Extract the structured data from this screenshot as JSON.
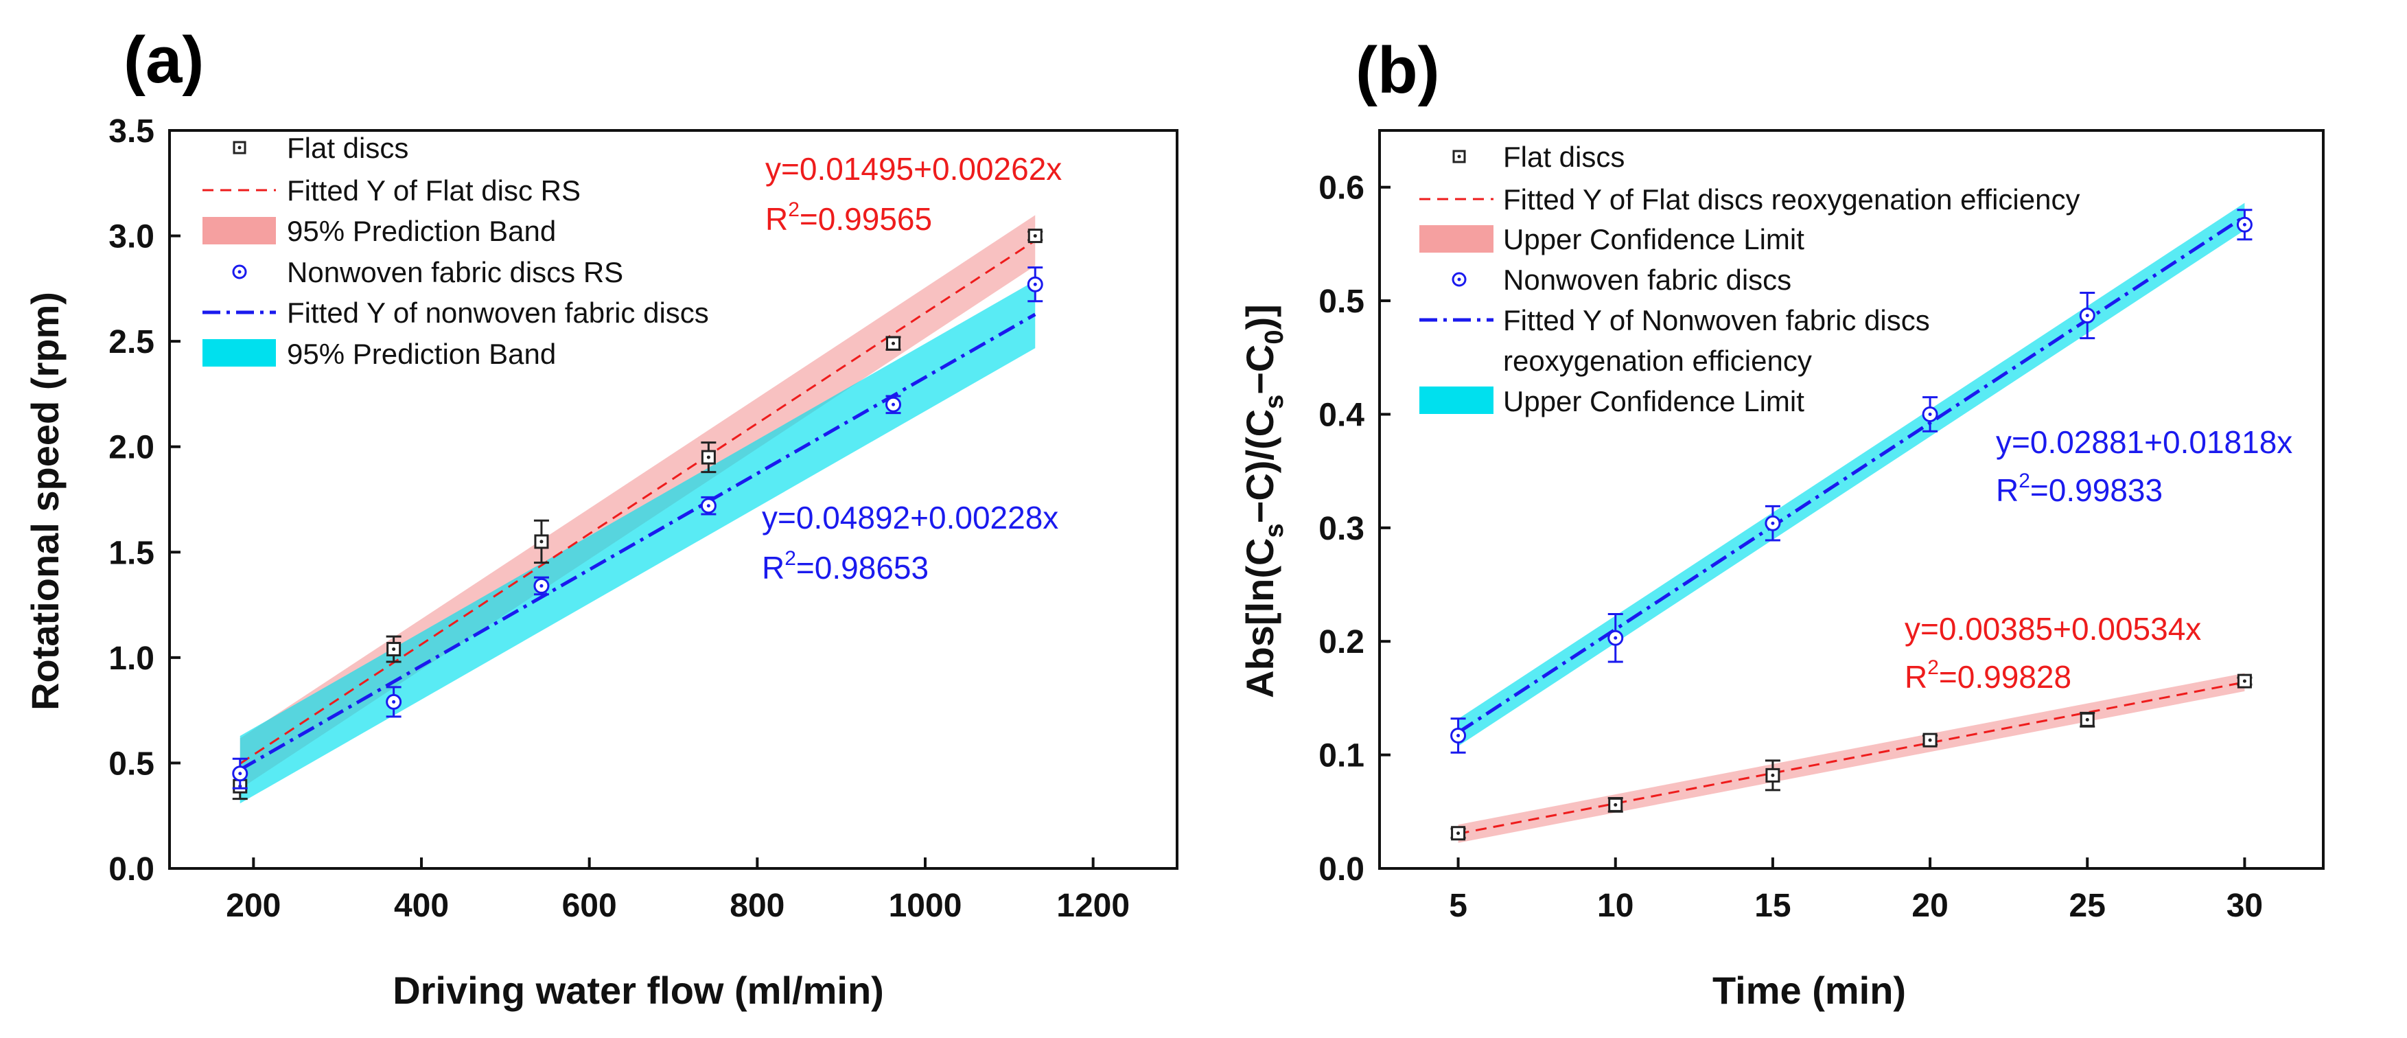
{
  "chart_data": [
    {
      "type": "line",
      "panel_label": "(a)",
      "xlabel": "Driving water flow (ml/min)",
      "ylabel": "Rotational speed (rpm)",
      "xlim": [
        100,
        1300
      ],
      "ylim": [
        0,
        3.5
      ],
      "xticks": [
        200,
        400,
        600,
        800,
        1000,
        1200
      ],
      "yticks": [
        "0.0",
        "0.5",
        "1.0",
        "1.5",
        "2.0",
        "2.5",
        "3.0",
        "3.5"
      ],
      "series": [
        {
          "name": "Flat discs",
          "kind": "points",
          "marker": "square",
          "color": "#222222",
          "x": [
            184,
            367,
            543,
            742,
            962,
            1131
          ],
          "y": [
            0.39,
            1.04,
            1.55,
            1.95,
            2.49,
            3.0
          ],
          "err": [
            0.06,
            0.06,
            0.1,
            0.07,
            0.03,
            0.02
          ]
        },
        {
          "name": "Nonwoven fabric discs RS",
          "kind": "points",
          "marker": "circle",
          "color": "#1a1aee",
          "x": [
            184,
            367,
            543,
            742,
            962,
            1131
          ],
          "y": [
            0.45,
            0.79,
            1.34,
            1.72,
            2.2,
            2.77
          ],
          "err": [
            0.07,
            0.07,
            0.04,
            0.04,
            0.04,
            0.08
          ]
        }
      ],
      "fits": [
        {
          "name": "Fitted Y of Flat disc RS",
          "intercept": 0.01495,
          "slope": 0.00262,
          "x_range": [
            184,
            1131
          ],
          "band_half": 0.12,
          "color": "#ee1c1c",
          "band_color": "#f5a0a0",
          "band_name": "95% Prediction Band",
          "equation": "y=0.01495+0.00262x",
          "r2_label": "R",
          "r2_value": "=0.99565"
        },
        {
          "name": "Fitted Y of nonwoven fabric discs",
          "intercept": 0.04892,
          "slope": 0.00228,
          "x_range": [
            184,
            1131
          ],
          "band_half": 0.16,
          "color": "#1a1aee",
          "band_color": "#00e0ee",
          "band_name": "95% Prediction Band",
          "equation": "y=0.04892+0.00228x",
          "r2_label": "R",
          "r2_value": "=0.98653"
        }
      ]
    },
    {
      "type": "line",
      "panel_label": "(b)",
      "xlabel": "Time (min)",
      "ylabel_parts": [
        "Abs[ln(C",
        "s",
        "−C)/(C",
        "s",
        "−C",
        "0",
        ")]"
      ],
      "xlim": [
        2.5,
        32.5
      ],
      "ylim": [
        0,
        0.65
      ],
      "xticks": [
        5,
        10,
        15,
        20,
        25,
        30
      ],
      "yticks": [
        "0.0",
        "0.1",
        "0.2",
        "0.3",
        "0.4",
        "0.5",
        "0.6"
      ],
      "series": [
        {
          "name": "Flat discs",
          "kind": "points",
          "marker": "square",
          "color": "#222222",
          "x": [
            5,
            10,
            15,
            20,
            25,
            30
          ],
          "y": [
            0.031,
            0.056,
            0.082,
            0.113,
            0.131,
            0.165
          ],
          "err": [
            0.004,
            0.006,
            0.013,
            0.004,
            0.006,
            0.003
          ]
        },
        {
          "name": "Nonwoven fabric discs",
          "kind": "points",
          "marker": "circle",
          "color": "#1a1aee",
          "x": [
            5,
            10,
            15,
            20,
            25,
            30
          ],
          "y": [
            0.117,
            0.203,
            0.304,
            0.4,
            0.487,
            0.567
          ],
          "err": [
            0.015,
            0.021,
            0.015,
            0.015,
            0.02,
            0.013
          ]
        }
      ],
      "fits": [
        {
          "name": "Fitted Y of Flat discs reoxygenation efficiency",
          "intercept": 0.00385,
          "slope": 0.00534,
          "x_range": [
            5,
            30
          ],
          "band_half": 0.008,
          "color": "#ee1c1c",
          "band_color": "#f5a0a0",
          "band_name": "Upper Confidence Limit",
          "equation": "y=0.00385+0.00534x",
          "r2_label": "R",
          "r2_value": "=0.99828"
        },
        {
          "name": "Fitted Y of Nonwoven fabric discs",
          "name_line2": "reoxygenation efficiency",
          "intercept": 0.02881,
          "slope": 0.01818,
          "x_range": [
            5,
            30
          ],
          "band_half": 0.012,
          "color": "#1a1aee",
          "band_color": "#00e0ee",
          "band_name": "Upper Confidence Limit",
          "equation": "y=0.02881+0.01818x",
          "r2_label": "R",
          "r2_value": "=0.99833"
        }
      ]
    }
  ]
}
